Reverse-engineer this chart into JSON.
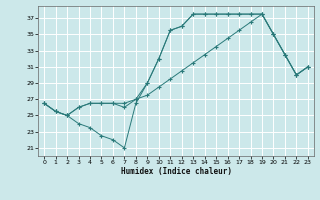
{
  "xlabel": "Humidex (Indice chaleur)",
  "background_color": "#cce8ea",
  "grid_color": "#ffffff",
  "line_color": "#2a7a7a",
  "xlim": [
    -0.5,
    23.5
  ],
  "ylim": [
    20.0,
    38.5
  ],
  "xticks": [
    0,
    1,
    2,
    3,
    4,
    5,
    6,
    7,
    8,
    9,
    10,
    11,
    12,
    13,
    14,
    15,
    16,
    17,
    18,
    19,
    20,
    21,
    22,
    23
  ],
  "yticks": [
    21,
    23,
    25,
    27,
    29,
    31,
    33,
    35,
    37
  ],
  "line1_x": [
    0,
    1,
    2,
    3,
    4,
    5,
    6,
    7,
    8,
    9,
    10,
    11,
    12,
    13,
    14,
    15,
    16,
    17,
    18,
    19,
    20,
    21,
    22,
    23
  ],
  "line1_y": [
    26.5,
    25.5,
    25.0,
    24.0,
    23.5,
    22.5,
    22.0,
    21.0,
    26.5,
    29.0,
    32.0,
    35.5,
    36.0,
    37.5,
    37.5,
    37.5,
    37.5,
    37.5,
    37.5,
    37.5,
    35.0,
    32.5,
    30.0,
    31.0
  ],
  "line2_x": [
    0,
    1,
    2,
    3,
    4,
    5,
    6,
    7,
    8,
    9,
    10,
    11,
    12,
    13,
    14,
    15,
    16,
    17,
    18,
    19,
    20,
    21,
    22,
    23
  ],
  "line2_y": [
    26.5,
    25.5,
    25.0,
    26.0,
    26.5,
    26.5,
    26.5,
    26.0,
    27.0,
    29.0,
    32.0,
    35.5,
    36.0,
    37.5,
    37.5,
    37.5,
    37.5,
    37.5,
    37.5,
    37.5,
    35.0,
    32.5,
    30.0,
    31.0
  ],
  "line3_x": [
    0,
    1,
    2,
    3,
    4,
    5,
    6,
    7,
    8,
    9,
    10,
    11,
    12,
    13,
    14,
    15,
    16,
    17,
    18,
    19,
    20,
    21,
    22,
    23
  ],
  "line3_y": [
    26.5,
    25.5,
    25.0,
    26.0,
    26.5,
    26.5,
    26.5,
    26.5,
    27.0,
    27.5,
    28.5,
    29.5,
    30.5,
    31.5,
    32.5,
    33.5,
    34.5,
    35.5,
    36.5,
    37.5,
    35.0,
    32.5,
    30.0,
    31.0
  ]
}
